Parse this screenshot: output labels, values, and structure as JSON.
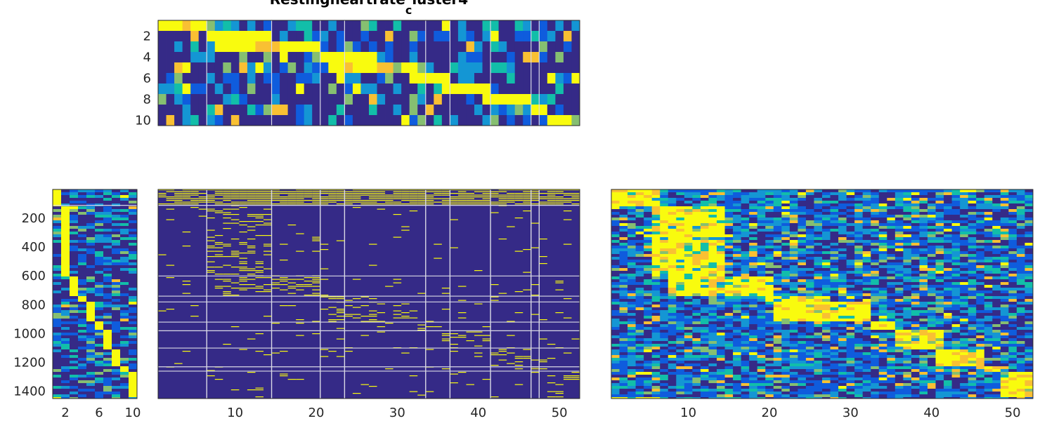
{
  "figure": {
    "title": "Restingheartrate",
    "title_subscript": "c",
    "title_tail": "luster4"
  },
  "colors": {
    "low": "#352a87",
    "mid_low": "#0f5cdd",
    "mid": "#1496d4",
    "mid_high": "#12bea9",
    "high_mid": "#86bf71",
    "high": "#f9c033",
    "max": "#f9fb0e",
    "separator": "#d9d9e6"
  },
  "chart_data": [
    {
      "name": "cluster-centroid-heatmap",
      "type": "heatmap",
      "rows": 10,
      "cols": 52,
      "x_ticks": [],
      "y_ticks": [
        2,
        4,
        6,
        8,
        10
      ],
      "col_separators": [
        6,
        14,
        20,
        23,
        33,
        36,
        41,
        46,
        47
      ],
      "dominant_blocks": [
        {
          "row": 1,
          "cols": [
            1,
            6
          ]
        },
        {
          "row": 2,
          "cols": [
            7,
            14
          ]
        },
        {
          "row": 3,
          "cols": [
            8,
            20
          ]
        },
        {
          "row": 4,
          "cols": [
            20,
            27
          ]
        },
        {
          "row": 5,
          "cols": [
            22,
            32
          ]
        },
        {
          "row": 6,
          "cols": [
            33,
            36
          ]
        },
        {
          "row": 7,
          "cols": [
            36,
            41
          ]
        },
        {
          "row": 8,
          "cols": [
            41,
            46
          ]
        },
        {
          "row": 9,
          "cols": [
            47,
            48
          ]
        },
        {
          "row": 10,
          "cols": [
            49,
            52
          ]
        }
      ]
    },
    {
      "name": "cluster-assignment-heatmap",
      "type": "heatmap",
      "rows": 1450,
      "cols": 10,
      "x_ticks": [
        2,
        6,
        10
      ],
      "y_ticks": [
        200,
        400,
        600,
        800,
        1000,
        1200,
        1400
      ],
      "cluster_row_bounds": [
        0,
        110,
        600,
        740,
        780,
        920,
        980,
        1100,
        1230,
        1260,
        1450
      ]
    },
    {
      "name": "binary-feature-heatmap",
      "type": "heatmap",
      "rows": 1450,
      "cols": 52,
      "x_ticks": [
        10,
        20,
        30,
        40,
        50
      ],
      "y_ticks": [],
      "col_separators": [
        6,
        14,
        20,
        23,
        33,
        36,
        41,
        46,
        47
      ],
      "row_separators": [
        110,
        600,
        740,
        780,
        920,
        980,
        1100,
        1230,
        1260
      ]
    },
    {
      "name": "continuous-feature-heatmap",
      "type": "heatmap",
      "rows": 1450,
      "cols": 52,
      "x_ticks": [
        10,
        20,
        30,
        40,
        50
      ],
      "y_ticks": [],
      "cluster_row_bounds": [
        0,
        110,
        600,
        740,
        780,
        920,
        980,
        1100,
        1230,
        1260,
        1450
      ]
    }
  ]
}
